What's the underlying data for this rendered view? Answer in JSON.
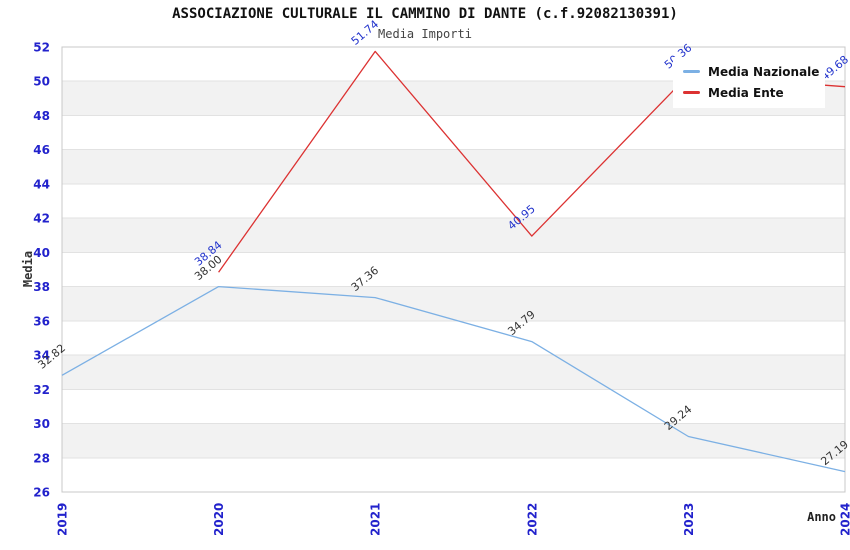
{
  "title": "ASSOCIAZIONE CULTURALE IL CAMMINO DI DANTE (c.f.92082130391)",
  "subtitle": "Media Importi",
  "chart_data": {
    "type": "line",
    "title": "ASSOCIAZIONE CULTURALE IL CAMMINO DI DANTE (c.f.92082130391)",
    "subtitle": "Media Importi",
    "categories": [
      "2019",
      "2020",
      "2021",
      "2022",
      "2023",
      "2024"
    ],
    "series": [
      {
        "name": "Media Nazionale",
        "color": "#7CB0E4",
        "label_color": "#333333",
        "values": [
          32.82,
          38.0,
          37.36,
          34.79,
          29.24,
          27.19
        ]
      },
      {
        "name": "Media Ente",
        "color": "#DC3232",
        "label_color": "#2233CC",
        "values": [
          null,
          38.84,
          51.74,
          40.95,
          50.36,
          49.68
        ]
      }
    ],
    "xlabel": "Anno",
    "ylabel": "Media",
    "ylim": [
      26,
      52
    ],
    "y_tick_step": 2,
    "tick_label_color": "#2222CC",
    "band_colors": [
      "#ffffff",
      "#f2f2f2"
    ],
    "grid": "horizontal-bands",
    "legend_position": "top-right",
    "data_labels": true
  }
}
